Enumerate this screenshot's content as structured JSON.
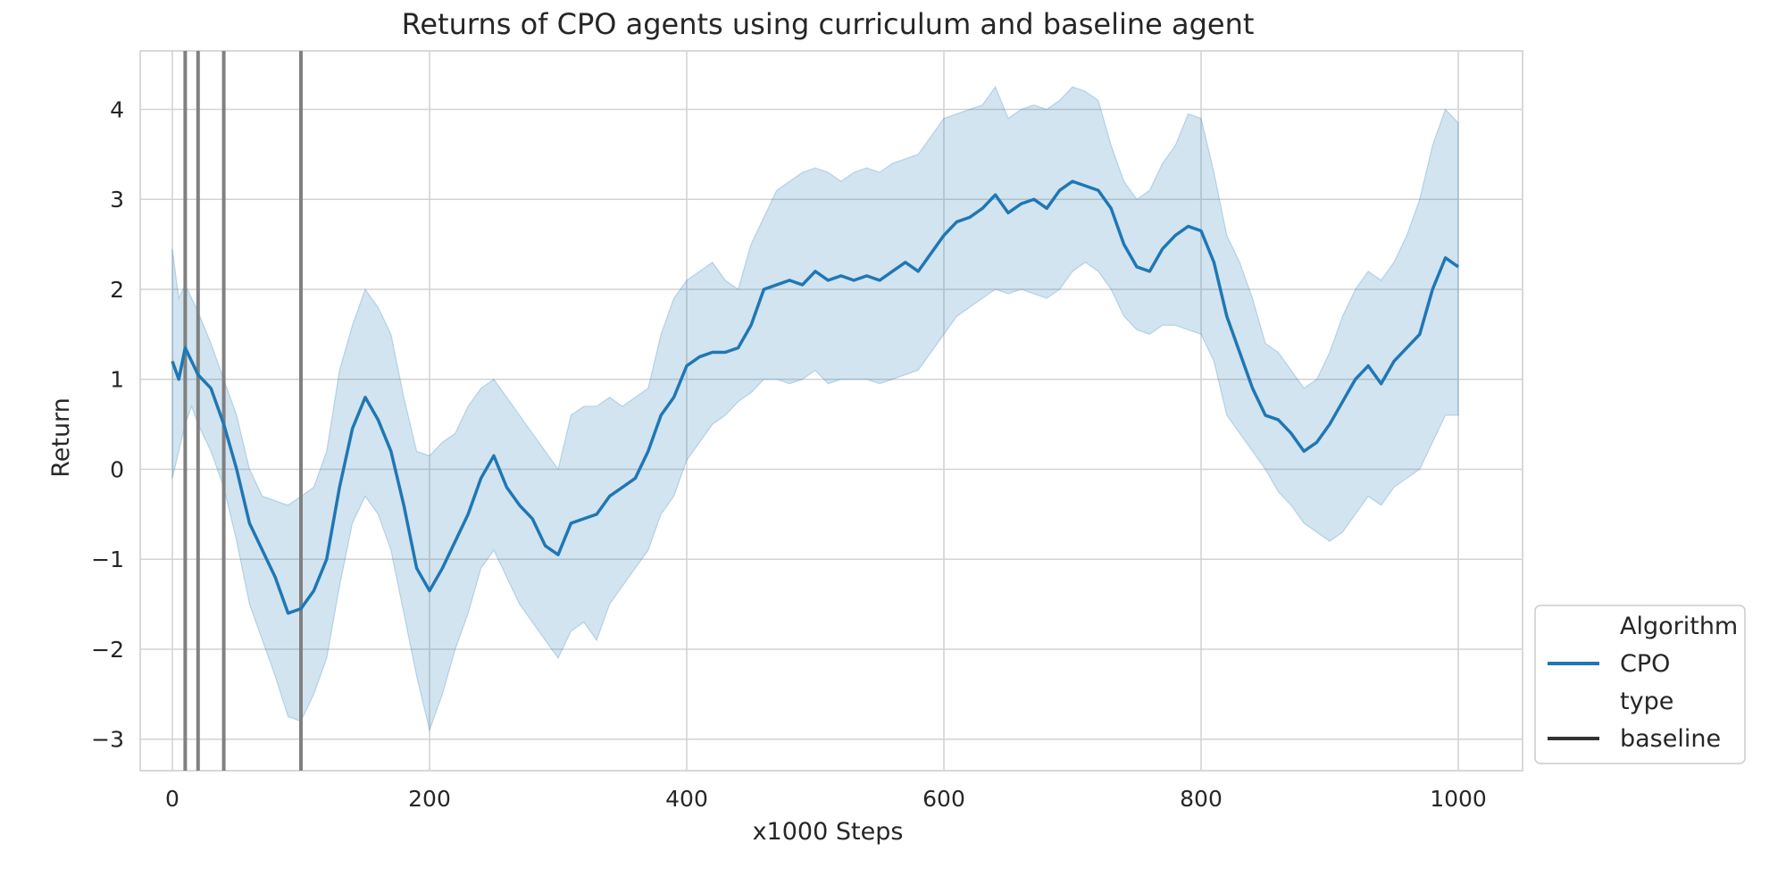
{
  "chart_data": {
    "type": "line",
    "title": "Returns of CPO agents using curriculum and baseline agent",
    "xlabel": "x1000 Steps",
    "ylabel": "Return",
    "xlim": [
      -25,
      1050
    ],
    "ylim": [
      -3.35,
      4.65
    ],
    "xticks": [
      0,
      200,
      400,
      600,
      800,
      1000
    ],
    "yticks": [
      -3,
      -2,
      -1,
      0,
      1,
      2,
      3,
      4
    ],
    "ytick_labels": [
      "−3",
      "−2",
      "−1",
      "0",
      "1",
      "2",
      "3",
      "4"
    ],
    "grid": true,
    "vlines": [
      10,
      20,
      40,
      100
    ],
    "vline_color": "#808080",
    "series": [
      {
        "name": "CPO",
        "color": "#1f77b4",
        "x": [
          0,
          5,
          10,
          15,
          20,
          30,
          40,
          50,
          60,
          70,
          80,
          90,
          100,
          110,
          120,
          130,
          140,
          150,
          160,
          170,
          180,
          190,
          200,
          210,
          220,
          230,
          240,
          250,
          260,
          270,
          280,
          290,
          300,
          310,
          320,
          330,
          340,
          350,
          360,
          370,
          380,
          390,
          400,
          410,
          420,
          430,
          440,
          450,
          460,
          470,
          480,
          490,
          500,
          510,
          520,
          530,
          540,
          550,
          560,
          570,
          580,
          590,
          600,
          610,
          620,
          630,
          640,
          650,
          660,
          670,
          680,
          690,
          700,
          710,
          720,
          730,
          740,
          750,
          760,
          770,
          780,
          790,
          800,
          810,
          820,
          830,
          840,
          850,
          860,
          870,
          880,
          890,
          900,
          910,
          920,
          930,
          940,
          950,
          960,
          970,
          980,
          990,
          1000
        ],
        "y": [
          1.2,
          1.0,
          1.35,
          1.2,
          1.05,
          0.9,
          0.5,
          0.0,
          -0.6,
          -0.9,
          -1.2,
          -1.6,
          -1.55,
          -1.35,
          -1.0,
          -0.2,
          0.45,
          0.8,
          0.55,
          0.2,
          -0.4,
          -1.1,
          -1.35,
          -1.1,
          -0.8,
          -0.5,
          -0.1,
          0.15,
          -0.2,
          -0.4,
          -0.55,
          -0.85,
          -0.95,
          -0.6,
          -0.55,
          -0.5,
          -0.3,
          -0.2,
          -0.1,
          0.2,
          0.6,
          0.8,
          1.15,
          1.25,
          1.3,
          1.3,
          1.35,
          1.6,
          2.0,
          2.05,
          2.1,
          2.05,
          2.2,
          2.1,
          2.15,
          2.1,
          2.15,
          2.1,
          2.2,
          2.3,
          2.2,
          2.4,
          2.6,
          2.75,
          2.8,
          2.9,
          3.05,
          2.85,
          2.95,
          3.0,
          2.9,
          3.1,
          3.2,
          3.15,
          3.1,
          2.9,
          2.5,
          2.25,
          2.2,
          2.45,
          2.6,
          2.7,
          2.65,
          2.3,
          1.7,
          1.3,
          0.9,
          0.6,
          0.55,
          0.4,
          0.2,
          0.3,
          0.5,
          0.75,
          1.0,
          1.15,
          0.95,
          1.2,
          1.35,
          1.5,
          2.0,
          2.35,
          2.25
        ],
        "lower": [
          -0.1,
          0.2,
          0.5,
          0.7,
          0.5,
          0.2,
          -0.2,
          -0.8,
          -1.5,
          -1.9,
          -2.3,
          -2.75,
          -2.8,
          -2.5,
          -2.1,
          -1.3,
          -0.6,
          -0.3,
          -0.5,
          -0.9,
          -1.6,
          -2.3,
          -2.9,
          -2.5,
          -2.0,
          -1.6,
          -1.1,
          -0.9,
          -1.2,
          -1.5,
          -1.7,
          -1.9,
          -2.1,
          -1.8,
          -1.7,
          -1.9,
          -1.5,
          -1.3,
          -1.1,
          -0.9,
          -0.5,
          -0.3,
          0.1,
          0.3,
          0.5,
          0.6,
          0.75,
          0.85,
          1.0,
          1.0,
          0.95,
          1.0,
          1.1,
          0.95,
          1.0,
          1.0,
          1.0,
          0.95,
          1.0,
          1.05,
          1.1,
          1.3,
          1.5,
          1.7,
          1.8,
          1.9,
          2.0,
          1.95,
          2.0,
          1.95,
          1.9,
          2.0,
          2.2,
          2.3,
          2.2,
          2.0,
          1.7,
          1.55,
          1.5,
          1.6,
          1.6,
          1.55,
          1.5,
          1.2,
          0.6,
          0.4,
          0.2,
          0.0,
          -0.25,
          -0.4,
          -0.6,
          -0.7,
          -0.8,
          -0.7,
          -0.5,
          -0.3,
          -0.4,
          -0.2,
          -0.1,
          0.0,
          0.3,
          0.6,
          0.6
        ],
        "upper": [
          2.45,
          1.9,
          2.05,
          1.9,
          1.75,
          1.4,
          1.0,
          0.6,
          0.0,
          -0.3,
          -0.35,
          -0.4,
          -0.3,
          -0.2,
          0.2,
          1.1,
          1.6,
          2.0,
          1.8,
          1.5,
          0.8,
          0.2,
          0.15,
          0.3,
          0.4,
          0.7,
          0.9,
          1.0,
          0.8,
          0.6,
          0.4,
          0.2,
          0.0,
          0.6,
          0.7,
          0.7,
          0.8,
          0.7,
          0.8,
          0.9,
          1.5,
          1.9,
          2.1,
          2.2,
          2.3,
          2.1,
          2.0,
          2.5,
          2.8,
          3.1,
          3.2,
          3.3,
          3.35,
          3.3,
          3.2,
          3.3,
          3.35,
          3.3,
          3.4,
          3.45,
          3.5,
          3.7,
          3.9,
          3.95,
          4.0,
          4.05,
          4.25,
          3.9,
          4.0,
          4.05,
          4.0,
          4.1,
          4.25,
          4.2,
          4.1,
          3.6,
          3.2,
          3.0,
          3.1,
          3.4,
          3.6,
          3.95,
          3.9,
          3.3,
          2.6,
          2.3,
          1.9,
          1.4,
          1.3,
          1.1,
          0.9,
          1.0,
          1.3,
          1.7,
          2.0,
          2.2,
          2.1,
          2.3,
          2.6,
          3.0,
          3.6,
          4.0,
          3.85
        ]
      }
    ],
    "legend": {
      "placement": "lower-right-outside",
      "entries": [
        {
          "label": "Algorithm",
          "kind": "header"
        },
        {
          "label": "CPO",
          "kind": "line",
          "color": "#1f77b4"
        },
        {
          "label": "type",
          "kind": "header"
        },
        {
          "label": "baseline",
          "kind": "line",
          "color": "#333333"
        }
      ]
    }
  }
}
